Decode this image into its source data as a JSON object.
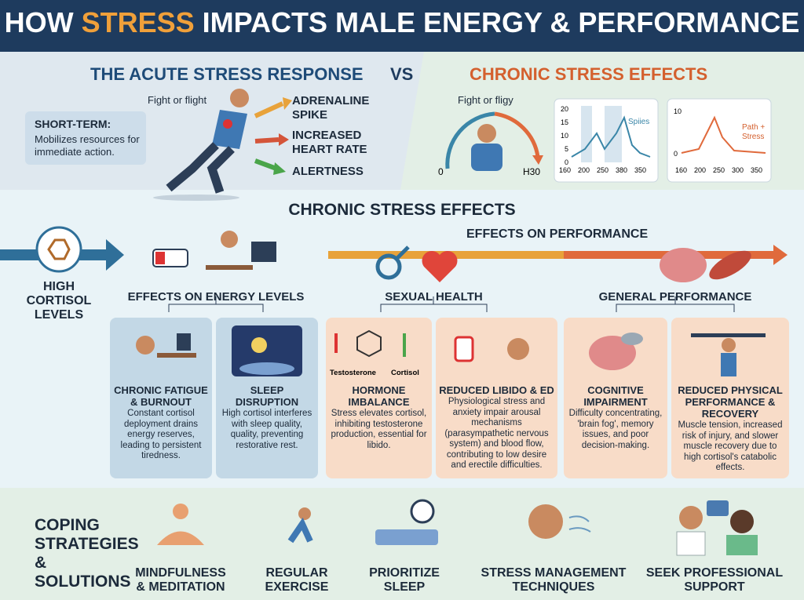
{
  "header": {
    "title_before": "HOW",
    "title_highlight": "STRESS",
    "title_after": "IMPACTS MALE ENERGY & PERFORMANCE"
  },
  "top": {
    "acute_title": "THE ACUTE STRESS RESPONSE",
    "vs": "VS",
    "chronic_title": "CHRONIC STRESS EFFECTS",
    "figure_label": "Fight or flight",
    "short_term_title": "SHORT-TERM:",
    "short_term_text": "Mobilizes resources for immediate action.",
    "effects": [
      "ADRENALINE SPIKE",
      "INCREASED HEART RATE",
      "ALERTNESS"
    ],
    "gauge_label": "Fight or fligy",
    "gauge_min": "0",
    "gauge_max": "H30",
    "chart1": {
      "yticks": [
        "20",
        "15",
        "10",
        "5",
        "0"
      ],
      "xticks": [
        "160",
        "200",
        "250",
        "380",
        "350"
      ],
      "label": "Spiies"
    },
    "chart2": {
      "yticks": [
        "10",
        "0"
      ],
      "xticks": [
        "160",
        "200",
        "250",
        "300",
        "350"
      ],
      "label": "Path + Stress"
    }
  },
  "middle": {
    "title": "CHRONIC STRESS EFFECTS",
    "performance_title": "EFFECTS ON PERFORMANCE",
    "cortisol": "HIGH CORTISOL LEVELS",
    "groups": [
      "EFFECTS ON ENERGY LEVELS",
      "SEXUAL HEALTH",
      "GENERAL PERFORMANCE"
    ],
    "hormone_labels": [
      "Testosterone",
      "Cortisol"
    ],
    "cards": [
      {
        "title": "CHRONIC FATIGUE & BURNOUT",
        "text": "Constant cortisol deployment drains energy reserves, leading to persistent tiredness."
      },
      {
        "title": "SLEEP DISRUPTION",
        "text": "High cortisol interferes with sleep quality, quality, preventing restorative rest."
      },
      {
        "title": "HORMONE IMBALANCE",
        "text": "Stress elevates cortisol, inhibiting testosterone production, essential for libido."
      },
      {
        "title": "REDUCED LIBIDO & ED",
        "text": "Physiological stress and anxiety impair arousal mechanisms (parasympathetic nervous system) and blood flow, contributing to low desire and erectile difficulties."
      },
      {
        "title": "COGNITIVE IMPAIRMENT",
        "text": "Difficulty concentrating, 'brain fog', memory issues, and poor decision-making."
      },
      {
        "title": "REDUCED PHYSICAL PERFORMANCE & RECOVERY",
        "text": "Muscle tension, increased risk of injury, and slower muscle recovery due to high cortisol's catabolic effects."
      }
    ]
  },
  "bottom": {
    "title": "COPING STRATEGIES & SOLUTIONS",
    "items": [
      "MINDFULNESS & MEDITATION",
      "REGULAR EXERCISE",
      "PRIORITIZE SLEEP",
      "STRESS MANAGEMENT TECHNIQUES",
      "SEEK PROFESSIONAL SUPPORT"
    ]
  }
}
